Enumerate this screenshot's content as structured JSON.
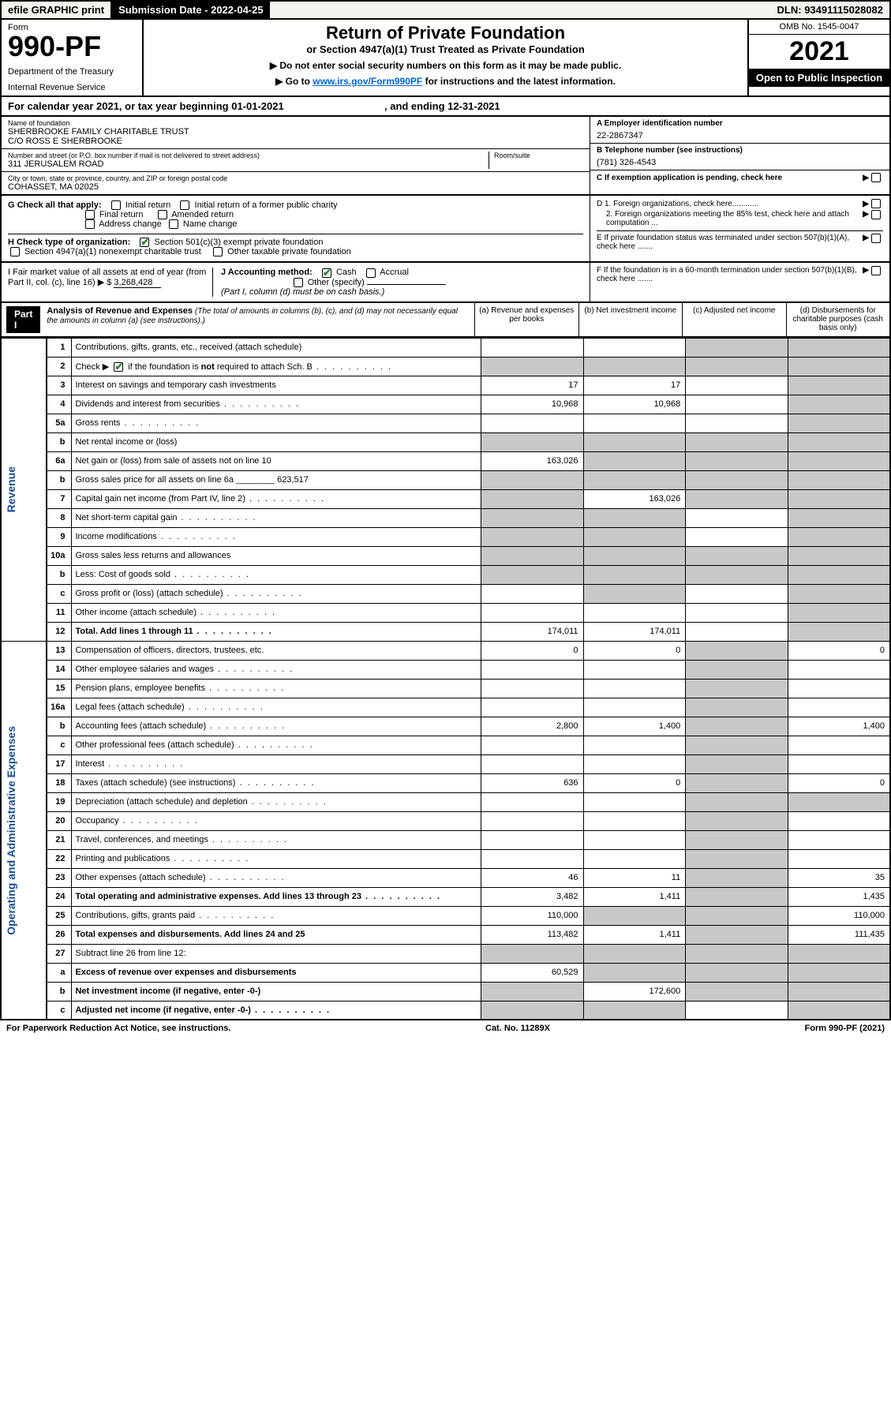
{
  "topbar": {
    "efile": "efile GRAPHIC print",
    "subdate_lbl": "Submission Date - 2022-04-25",
    "dln": "DLN: 93491115028082"
  },
  "header": {
    "form": "Form",
    "num": "990-PF",
    "dept": "Department of the Treasury",
    "irs": "Internal Revenue Service",
    "title": "Return of Private Foundation",
    "sub": "or Section 4947(a)(1) Trust Treated as Private Foundation",
    "b1": "▶ Do not enter social security numbers on this form as it may be made public.",
    "b2_pre": "▶ Go to ",
    "b2_link": "www.irs.gov/Form990PF",
    "b2_post": " for instructions and the latest information.",
    "omb": "OMB No. 1545-0047",
    "year": "2021",
    "open": "Open to Public Inspection"
  },
  "cal": {
    "text_a": "For calendar year 2021, or tax year beginning 01-01-2021",
    "text_b": ", and ending 12-31-2021"
  },
  "info": {
    "name_lbl": "Name of foundation",
    "name1": "SHERBROOKE FAMILY CHARITABLE TRUST",
    "name2": "C/O ROSS E SHERBROOKE",
    "addr_lbl": "Number and street (or P.O. box number if mail is not delivered to street address)",
    "addr": "311 JERUSALEM ROAD",
    "room_lbl": "Room/suite",
    "city_lbl": "City or town, state or province, country, and ZIP or foreign postal code",
    "city": "COHASSET, MA  02025",
    "A_lbl": "A Employer identification number",
    "A_val": "22-2867347",
    "B_lbl": "B Telephone number (see instructions)",
    "B_val": "(781) 326-4543",
    "C_lbl": "C If exemption application is pending, check here"
  },
  "G": {
    "lbl": "G Check all that apply:",
    "i1": "Initial return",
    "i2": "Initial return of a former public charity",
    "i3": "Final return",
    "i4": "Amended return",
    "i5": "Address change",
    "i6": "Name change"
  },
  "H": {
    "lbl": "H Check type of organization:",
    "o1": "Section 501(c)(3) exempt private foundation",
    "o2": "Section 4947(a)(1) nonexempt charitable trust",
    "o3": "Other taxable private foundation"
  },
  "I": {
    "lbl": "I Fair market value of all assets at end of year (from Part II, col. (c), line 16) ▶ $",
    "val": "3,268,428"
  },
  "J": {
    "lbl": "J Accounting method:",
    "cash": "Cash",
    "accr": "Accrual",
    "other": "Other (specify)",
    "note": "(Part I, column (d) must be on cash basis.)"
  },
  "D": {
    "d1": "D 1. Foreign organizations, check here............",
    "d2": "2. Foreign organizations meeting the 85% test, check here and attach computation ...",
    "E": "E  If private foundation status was terminated under section 507(b)(1)(A), check here .......",
    "F": "F  If the foundation is in a 60-month termination under section 507(b)(1)(B), check here ......."
  },
  "part1": {
    "title": "Part I",
    "heading": "Analysis of Revenue and Expenses",
    "note": " (The total of amounts in columns (b), (c), and (d) may not necessarily equal the amounts in column (a) (see instructions).)",
    "cols": {
      "a": "(a)   Revenue and expenses per books",
      "b": "(b)   Net investment income",
      "c": "(c)   Adjusted net income",
      "d": "(d)  Disbursements for charitable purposes (cash basis only)"
    }
  },
  "side": {
    "rev": "Revenue",
    "exp": "Operating and Administrative Expenses"
  },
  "rows": [
    {
      "n": "1",
      "d": "Contributions, gifts, grants, etc., received (attach schedule)",
      "a": "",
      "b": "",
      "c": "g",
      "dd": "g"
    },
    {
      "n": "2",
      "d": "Check ▶ ☑ if the foundation is not required to attach Sch. B",
      "dots": true,
      "a": "g",
      "b": "g",
      "c": "g",
      "dd": "g"
    },
    {
      "n": "3",
      "d": "Interest on savings and temporary cash investments",
      "a": "17",
      "b": "17",
      "c": "",
      "dd": "g"
    },
    {
      "n": "4",
      "d": "Dividends and interest from securities",
      "dots": true,
      "a": "10,968",
      "b": "10,968",
      "c": "",
      "dd": "g"
    },
    {
      "n": "5a",
      "d": "Gross rents",
      "dots": true,
      "a": "",
      "b": "",
      "c": "",
      "dd": "g"
    },
    {
      "n": "b",
      "d": "Net rental income or (loss)",
      "uline": true,
      "a": "g",
      "b": "g",
      "c": "g",
      "dd": "g"
    },
    {
      "n": "6a",
      "d": "Net gain or (loss) from sale of assets not on line 10",
      "a": "163,026",
      "b": "g",
      "c": "g",
      "dd": "g"
    },
    {
      "n": "b",
      "d": "Gross sales price for all assets on line 6a ________ 623,517",
      "a": "g",
      "b": "g",
      "c": "g",
      "dd": "g"
    },
    {
      "n": "7",
      "d": "Capital gain net income (from Part IV, line 2)",
      "dots": true,
      "a": "g",
      "b": "163,026",
      "c": "g",
      "dd": "g"
    },
    {
      "n": "8",
      "d": "Net short-term capital gain",
      "dots": true,
      "a": "g",
      "b": "g",
      "c": "",
      "dd": "g"
    },
    {
      "n": "9",
      "d": "Income modifications",
      "dots": true,
      "a": "g",
      "b": "g",
      "c": "",
      "dd": "g"
    },
    {
      "n": "10a",
      "d": "Gross sales less returns and allowances",
      "box": true,
      "a": "g",
      "b": "g",
      "c": "g",
      "dd": "g"
    },
    {
      "n": "b",
      "d": "Less: Cost of goods sold",
      "dots": true,
      "box": true,
      "a": "g",
      "b": "g",
      "c": "g",
      "dd": "g"
    },
    {
      "n": "c",
      "d": "Gross profit or (loss) (attach schedule)",
      "dots": true,
      "a": "",
      "b": "g",
      "c": "",
      "dd": "g"
    },
    {
      "n": "11",
      "d": "Other income (attach schedule)",
      "dots": true,
      "a": "",
      "b": "",
      "c": "",
      "dd": "g"
    },
    {
      "n": "12",
      "d": "Total. Add lines 1 through 11",
      "dots": true,
      "bold": true,
      "a": "174,011",
      "b": "174,011",
      "c": "",
      "dd": "g"
    },
    {
      "n": "13",
      "d": "Compensation of officers, directors, trustees, etc.",
      "a": "0",
      "b": "0",
      "c": "g",
      "dd": "0"
    },
    {
      "n": "14",
      "d": "Other employee salaries and wages",
      "dots": true,
      "a": "",
      "b": "",
      "c": "g",
      "dd": ""
    },
    {
      "n": "15",
      "d": "Pension plans, employee benefits",
      "dots": true,
      "a": "",
      "b": "",
      "c": "g",
      "dd": ""
    },
    {
      "n": "16a",
      "d": "Legal fees (attach schedule)",
      "dots": true,
      "a": "",
      "b": "",
      "c": "g",
      "dd": ""
    },
    {
      "n": "b",
      "d": "Accounting fees (attach schedule)",
      "dots": true,
      "a": "2,800",
      "b": "1,400",
      "c": "g",
      "dd": "1,400"
    },
    {
      "n": "c",
      "d": "Other professional fees (attach schedule)",
      "dots": true,
      "a": "",
      "b": "",
      "c": "g",
      "dd": ""
    },
    {
      "n": "17",
      "d": "Interest",
      "dots": true,
      "a": "",
      "b": "",
      "c": "g",
      "dd": ""
    },
    {
      "n": "18",
      "d": "Taxes (attach schedule) (see instructions)",
      "dots": true,
      "a": "636",
      "b": "0",
      "c": "g",
      "dd": "0"
    },
    {
      "n": "19",
      "d": "Depreciation (attach schedule) and depletion",
      "dots": true,
      "a": "",
      "b": "",
      "c": "g",
      "dd": "g"
    },
    {
      "n": "20",
      "d": "Occupancy",
      "dots": true,
      "a": "",
      "b": "",
      "c": "g",
      "dd": ""
    },
    {
      "n": "21",
      "d": "Travel, conferences, and meetings",
      "dots": true,
      "a": "",
      "b": "",
      "c": "g",
      "dd": ""
    },
    {
      "n": "22",
      "d": "Printing and publications",
      "dots": true,
      "a": "",
      "b": "",
      "c": "g",
      "dd": ""
    },
    {
      "n": "23",
      "d": "Other expenses (attach schedule)",
      "dots": true,
      "a": "46",
      "b": "11",
      "c": "g",
      "dd": "35"
    },
    {
      "n": "24",
      "d": "Total operating and administrative expenses. Add lines 13 through 23",
      "dots": true,
      "bold": true,
      "a": "3,482",
      "b": "1,411",
      "c": "g",
      "dd": "1,435"
    },
    {
      "n": "25",
      "d": "Contributions, gifts, grants paid",
      "dots": true,
      "a": "110,000",
      "b": "g",
      "c": "g",
      "dd": "110,000"
    },
    {
      "n": "26",
      "d": "Total expenses and disbursements. Add lines 24 and 25",
      "bold": true,
      "a": "113,482",
      "b": "1,411",
      "c": "g",
      "dd": "111,435"
    },
    {
      "n": "27",
      "d": "Subtract line 26 from line 12:",
      "a": "g",
      "b": "g",
      "c": "g",
      "dd": "g"
    },
    {
      "n": "a",
      "d": "Excess of revenue over expenses and disbursements",
      "bold": true,
      "a": "60,529",
      "b": "g",
      "c": "g",
      "dd": "g"
    },
    {
      "n": "b",
      "d": "Net investment income (if negative, enter -0-)",
      "bold": true,
      "a": "g",
      "b": "172,600",
      "c": "g",
      "dd": "g"
    },
    {
      "n": "c",
      "d": "Adjusted net income (if negative, enter -0-)",
      "dots": true,
      "bold": true,
      "a": "g",
      "b": "g",
      "c": "",
      "dd": "g"
    }
  ],
  "footer": {
    "l": "For Paperwork Reduction Act Notice, see instructions.",
    "c": "Cat. No. 11289X",
    "r": "Form 990-PF (2021)"
  }
}
